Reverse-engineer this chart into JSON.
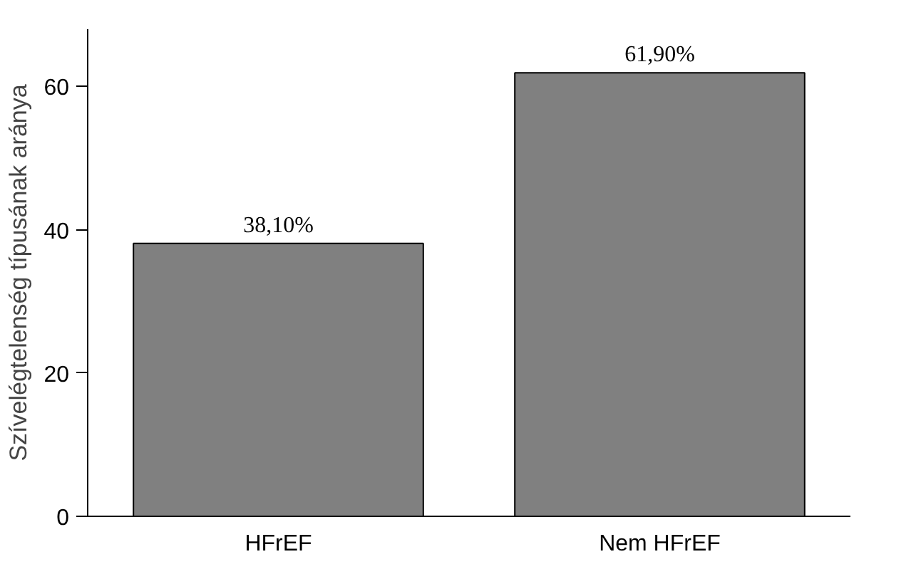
{
  "chart_data": {
    "type": "bar",
    "ylabel": "Szívelégtelenség típusának aránya",
    "categories": [
      "HFrEF",
      "Nem HFrEF"
    ],
    "values": [
      38.1,
      61.9
    ],
    "value_labels": [
      "38,10%",
      "61,90%"
    ],
    "color": "#808080",
    "ylim": [
      0,
      68
    ],
    "yticks": [
      0,
      20,
      40,
      60
    ],
    "grid": false
  }
}
